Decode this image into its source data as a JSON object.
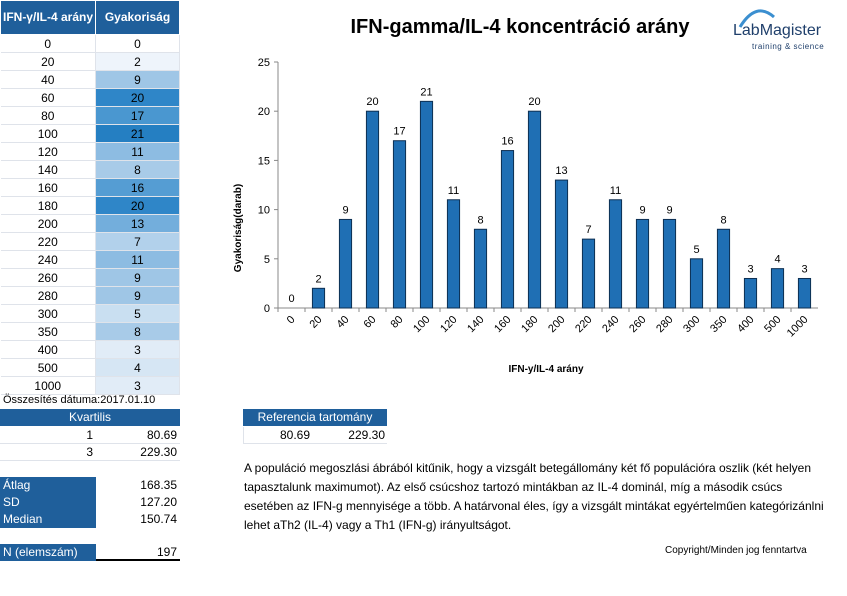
{
  "table": {
    "headers": [
      "IFN-γ/IL-4 arány",
      "Gyakoriság"
    ],
    "rows": [
      {
        "ratio": "0",
        "count": "0",
        "color": "#ffffff"
      },
      {
        "ratio": "20",
        "count": "2",
        "color": "#eef4fb"
      },
      {
        "ratio": "40",
        "count": "9",
        "color": "#9fc6e6"
      },
      {
        "ratio": "60",
        "count": "20",
        "color": "#2f86c8"
      },
      {
        "ratio": "80",
        "count": "17",
        "color": "#4a97d0"
      },
      {
        "ratio": "100",
        "count": "21",
        "color": "#257fc2"
      },
      {
        "ratio": "120",
        "count": "11",
        "color": "#8dbce2"
      },
      {
        "ratio": "140",
        "count": "8",
        "color": "#a8cbe8"
      },
      {
        "ratio": "160",
        "count": "16",
        "color": "#559dd3"
      },
      {
        "ratio": "180",
        "count": "20",
        "color": "#2f86c8"
      },
      {
        "ratio": "200",
        "count": "13",
        "color": "#73aedc"
      },
      {
        "ratio": "220",
        "count": "7",
        "color": "#b2d1eb"
      },
      {
        "ratio": "240",
        "count": "11",
        "color": "#8dbce2"
      },
      {
        "ratio": "260",
        "count": "9",
        "color": "#9fc6e6"
      },
      {
        "ratio": "280",
        "count": "9",
        "color": "#9fc6e6"
      },
      {
        "ratio": "300",
        "count": "5",
        "color": "#c9dff1"
      },
      {
        "ratio": "350",
        "count": "8",
        "color": "#a8cbe8"
      },
      {
        "ratio": "400",
        "count": "3",
        "color": "#e1ecf7"
      },
      {
        "ratio": "500",
        "count": "4",
        "color": "#d6e6f4"
      },
      {
        "ratio": "1000",
        "count": "3",
        "color": "#e1ecf7"
      }
    ]
  },
  "summary": {
    "date_label": "Összesítés dátuma:2017.01.10",
    "quartiles_header": "Kvartilis",
    "quartiles": [
      {
        "q": "1",
        "value": "80.69"
      },
      {
        "q": "3",
        "value": "229.30"
      }
    ],
    "stats": [
      {
        "label": "Átlag",
        "value": "168.35"
      },
      {
        "label": "SD",
        "value": "127.20"
      },
      {
        "label": "Median",
        "value": "150.74"
      }
    ],
    "n_label": "N (elemszám)",
    "n_value": "197"
  },
  "reference": {
    "header": "Referencia tartomány",
    "low": "80.69",
    "high": "229.30"
  },
  "logo": {
    "name": "LabMagister",
    "tagline": "training & science"
  },
  "description": "A populáció megoszlási ábrából kitűnik, hogy a vizsgált betegállomány két fő populációra oszlik (két helyen tapasztalunk maximumot). Az első csúcshoz tartozó mintákban az IL-4 dominál, míg a második csúcs esetében az IFN-g mennyisége a több. A határvonal éles, így a vizsgált mintákat egyértelműen kategórizánlni lehet aTh2 (IL-4) vagy a Th1 (IFN-g) irányultságot.",
  "copyright": "Copyright/Minden jog fenntartva",
  "colors": {
    "header_blue": "#1f5f9b",
    "bar_fill": "#1f6fb4",
    "bar_stroke": "#0d2f52"
  },
  "chart_data": {
    "type": "bar",
    "title": "IFN-gamma/IL-4 koncentráció arány",
    "xlabel": "IFN-y/IL-4 arány",
    "ylabel": "Gyakoriság(darab)",
    "categories": [
      "0",
      "20",
      "40",
      "60",
      "80",
      "100",
      "120",
      "140",
      "160",
      "180",
      "200",
      "220",
      "240",
      "260",
      "280",
      "300",
      "350",
      "400",
      "500",
      "1000"
    ],
    "values": [
      0,
      2,
      9,
      20,
      17,
      21,
      11,
      8,
      16,
      20,
      13,
      7,
      11,
      9,
      9,
      5,
      8,
      3,
      4,
      3
    ],
    "ylim": [
      0,
      25
    ],
    "yticks": [
      0,
      5,
      10,
      15,
      20,
      25
    ],
    "data_labels": true,
    "grid": false
  }
}
